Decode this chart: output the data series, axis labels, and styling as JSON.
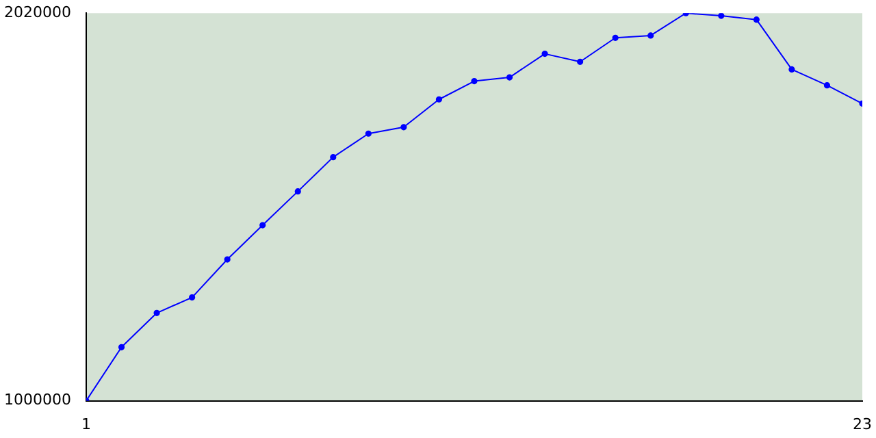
{
  "chart_data": {
    "type": "line",
    "x": [
      1,
      2,
      3,
      4,
      5,
      6,
      7,
      8,
      9,
      10,
      11,
      12,
      13,
      14,
      15,
      16,
      17,
      18,
      19,
      20,
      21,
      22,
      23
    ],
    "series": [
      {
        "color": "#0000ff",
        "values": [
          1000000,
          1141000,
          1231000,
          1272000,
          1372000,
          1462000,
          1551000,
          1641000,
          1703000,
          1720000,
          1793000,
          1841000,
          1851000,
          1913000,
          1892000,
          1955000,
          1961000,
          2020000,
          2013000,
          2003000,
          1872000,
          1830000,
          1782000
        ]
      }
    ],
    "xlim": [
      1,
      23
    ],
    "xticks": [
      1,
      23
    ],
    "ylim": [
      1000000,
      2020000
    ],
    "yticks": [
      1000000,
      2020000
    ],
    "grid": false,
    "legend": false,
    "marker": "circle",
    "line_style": "solid"
  }
}
